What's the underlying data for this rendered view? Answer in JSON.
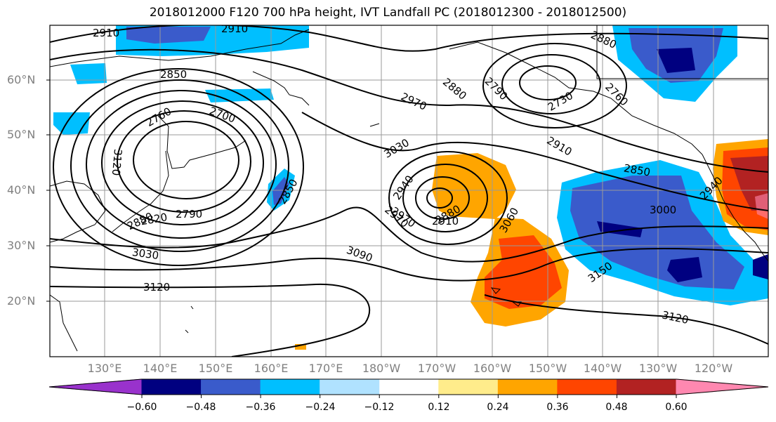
{
  "title": "2018012000 F120 700 hPa height, IVT Landfall PC (2018012300 - 2018012500)",
  "lat_labels": [
    "60°N",
    "50°N",
    "40°N",
    "30°N",
    "20°N"
  ],
  "lon_labels": [
    "130°E",
    "140°E",
    "150°E",
    "160°E",
    "170°E",
    "180°W",
    "170°W",
    "160°W",
    "150°W",
    "140°W",
    "130°W",
    "120°W"
  ],
  "contour_labels": [
    "2910",
    "2910",
    "2850",
    "2850",
    "2760",
    "2700",
    "3120",
    "2880",
    "2820",
    "2790",
    "3030",
    "3120",
    "2880",
    "2970",
    "2970",
    "3030",
    "2790",
    "2730",
    "2880",
    "2760",
    "2910",
    "2850",
    "2940",
    "2970",
    "2880",
    "2910",
    "3060",
    "2940",
    "3000",
    "3090",
    "3150",
    "3120"
  ],
  "colorbar": {
    "ticks": [
      "−0.60",
      "−0.48",
      "−0.36",
      "−0.24",
      "−0.12",
      "0.12",
      "0.24",
      "0.36",
      "0.48",
      "0.60"
    ],
    "colors": [
      "#9932CC",
      "#000080",
      "#3A5BCB",
      "#00BFFF",
      "#B0E2FF",
      "#FFFFFF",
      "#FFEC8B",
      "#FFA500",
      "#FF4500",
      "#B22222",
      "#FF88B0"
    ]
  }
}
